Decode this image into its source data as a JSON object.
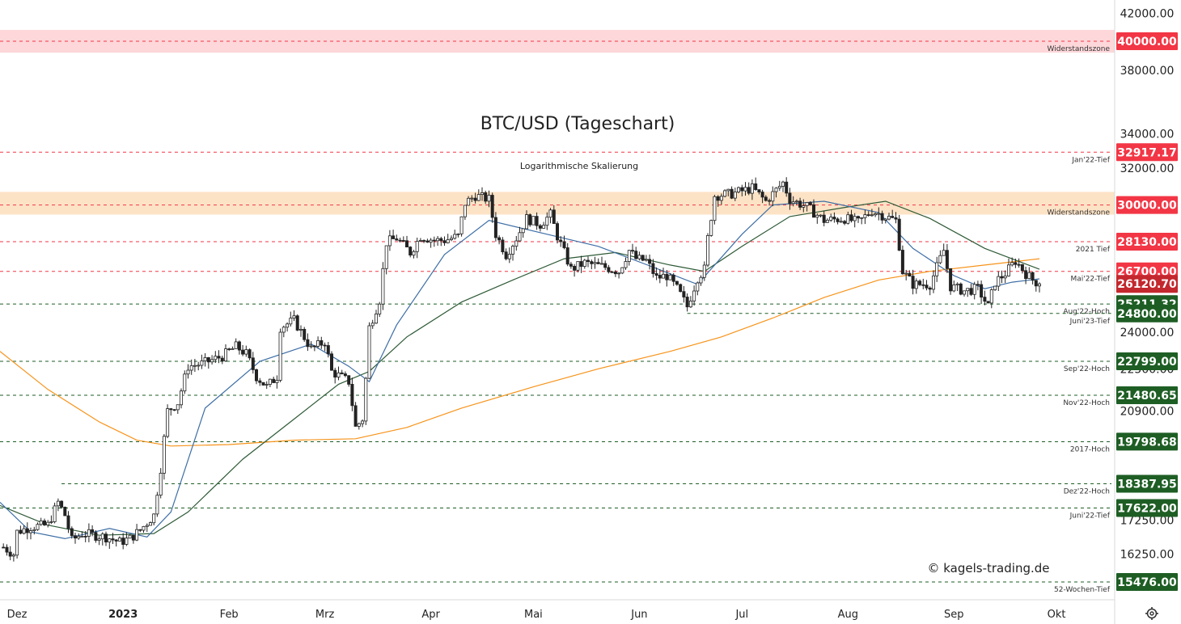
{
  "chart_data": {
    "type": "candlestick",
    "title": "BTC/USD (Tageschart)",
    "subtitle": "Logarithmische Skalierung",
    "watermark": "© kagels-trading.de",
    "y_scale": "log",
    "ylim": [
      15000,
      43000
    ],
    "x_range": [
      "2022-11-26",
      "2023-10-18"
    ],
    "y_ticks": [
      "42000.00",
      "38000.00",
      "34000.00",
      "32000.00",
      "24000.00",
      "22500.00",
      "20900.00",
      "17250.00",
      "16250.00"
    ],
    "x_ticks": [
      {
        "date": "2022-12-01",
        "label": "Dez",
        "bold": false
      },
      {
        "date": "2023-01-01",
        "label": "2023",
        "bold": true
      },
      {
        "date": "2023-02-01",
        "label": "Feb",
        "bold": false
      },
      {
        "date": "2023-03-01",
        "label": "Mrz",
        "bold": false
      },
      {
        "date": "2023-04-01",
        "label": "Apr",
        "bold": false
      },
      {
        "date": "2023-05-01",
        "label": "Mai",
        "bold": false
      },
      {
        "date": "2023-06-01",
        "label": "Jun",
        "bold": false
      },
      {
        "date": "2023-07-01",
        "label": "Jul",
        "bold": false
      },
      {
        "date": "2023-08-01",
        "label": "Aug",
        "bold": false
      },
      {
        "date": "2023-09-01",
        "label": "Sep",
        "bold": false
      },
      {
        "date": "2023-10-01",
        "label": "Okt",
        "bold": false
      }
    ],
    "zones": [
      {
        "label": "Widerstandszone",
        "low": 39200,
        "high": 40800,
        "color": "#fdd7da"
      },
      {
        "label": "Widerstandszone",
        "low": 29500,
        "high": 30700,
        "color": "#fde3c6"
      }
    ],
    "levels": [
      {
        "label": "Widerstandszone",
        "value": 40000.0,
        "text": "40000.00",
        "color": "#f23645",
        "start": "2022-11-26"
      },
      {
        "label": "Jan'22-Tief",
        "value": 32917.17,
        "text": "32917.17",
        "color": "#f23645",
        "start": "2022-11-26"
      },
      {
        "label": "Widerstandszone",
        "value": 30000.0,
        "text": "30000.00",
        "color": "#f23645",
        "start": "2022-11-26"
      },
      {
        "label": "2021 Tief",
        "value": 28130.0,
        "text": "28130.00",
        "color": "#f23645",
        "start": "2022-11-26"
      },
      {
        "label": "Mai'22-Tief",
        "value": 26700.0,
        "text": "26700.00",
        "color": "#f23645",
        "start": "2022-11-26"
      },
      {
        "label": "Aug'22-Hoch",
        "value": 25211.32,
        "text": "25211.32",
        "color": "#1e5e24",
        "start": "2022-11-26"
      },
      {
        "label": "Juni'23-Tief",
        "value": 24800.0,
        "text": "24800.00",
        "color": "#1e5e24",
        "start": "2023-06-15"
      },
      {
        "label": "Sep'22-Hoch",
        "value": 22799.0,
        "text": "22799.00",
        "color": "#1e5e24",
        "start": "2022-11-26"
      },
      {
        "label": "Nov'22-Hoch",
        "value": 21480.65,
        "text": "21480.65",
        "color": "#1e5e24",
        "start": "2022-11-26"
      },
      {
        "label": "2017-Hoch",
        "value": 19798.68,
        "text": "19798.68",
        "color": "#1e5e24",
        "start": "2022-11-26"
      },
      {
        "label": "Dez'22-Hoch",
        "value": 18387.95,
        "text": "18387.95",
        "color": "#1e5e24",
        "start": "2022-12-14"
      },
      {
        "label": "Juni'22-Tief",
        "value": 17622.0,
        "text": "17622.00",
        "color": "#1e5e24",
        "start": "2022-11-26"
      },
      {
        "label": "52-Wochen-Tief",
        "value": 15476.0,
        "text": "15476.00",
        "color": "#1e5e24",
        "start": "2022-11-26"
      }
    ],
    "current_price": {
      "value": 26120.7,
      "text": "26120.70",
      "color": "#c3282e"
    },
    "price_path": [
      [
        "2022-11-27",
        16450
      ],
      [
        "2022-11-30",
        16250
      ],
      [
        "2022-12-01",
        16900
      ],
      [
        "2022-12-05",
        17050
      ],
      [
        "2022-12-10",
        17100
      ],
      [
        "2022-12-13",
        17800
      ],
      [
        "2022-12-15",
        17400
      ],
      [
        "2022-12-17",
        16650
      ],
      [
        "2022-12-20",
        16850
      ],
      [
        "2022-12-27",
        16750
      ],
      [
        "2022-12-31",
        16600
      ],
      [
        "2023-01-03",
        16700
      ],
      [
        "2023-01-06",
        16950
      ],
      [
        "2023-01-10",
        17400
      ],
      [
        "2023-01-12",
        18900
      ],
      [
        "2023-01-14",
        20900
      ],
      [
        "2023-01-17",
        21200
      ],
      [
        "2023-01-20",
        22600
      ],
      [
        "2023-01-24",
        22700
      ],
      [
        "2023-01-30",
        23000
      ],
      [
        "2023-02-03",
        23400
      ],
      [
        "2023-02-06",
        23100
      ],
      [
        "2023-02-09",
        22200
      ],
      [
        "2023-02-12",
        21800
      ],
      [
        "2023-02-15",
        22200
      ],
      [
        "2023-02-16",
        24200
      ],
      [
        "2023-02-20",
        24500
      ],
      [
        "2023-02-25",
        23300
      ],
      [
        "2023-03-01",
        23600
      ],
      [
        "2023-03-03",
        22400
      ],
      [
        "2023-03-08",
        22000
      ],
      [
        "2023-03-10",
        20300
      ],
      [
        "2023-03-12",
        20600
      ],
      [
        "2023-03-13",
        22100
      ],
      [
        "2023-03-14",
        24200
      ],
      [
        "2023-03-17",
        25400
      ],
      [
        "2023-03-19",
        28100
      ],
      [
        "2023-03-22",
        28300
      ],
      [
        "2023-03-26",
        27600
      ],
      [
        "2023-03-29",
        28400
      ],
      [
        "2023-04-02",
        28200
      ],
      [
        "2023-04-05",
        28200
      ],
      [
        "2023-04-09",
        28400
      ],
      [
        "2023-04-11",
        30100
      ],
      [
        "2023-04-14",
        30500
      ],
      [
        "2023-04-18",
        30300
      ],
      [
        "2023-04-20",
        28500
      ],
      [
        "2023-04-23",
        27500
      ],
      [
        "2023-04-26",
        28300
      ],
      [
        "2023-04-29",
        29300
      ],
      [
        "2023-05-03",
        29000
      ],
      [
        "2023-05-06",
        29500
      ],
      [
        "2023-05-08",
        28400
      ],
      [
        "2023-05-10",
        27600
      ],
      [
        "2023-05-12",
        26800
      ],
      [
        "2023-05-16",
        27100
      ],
      [
        "2023-05-22",
        26900
      ],
      [
        "2023-05-26",
        26700
      ],
      [
        "2023-05-29",
        27700
      ],
      [
        "2023-05-31",
        27300
      ],
      [
        "2023-06-03",
        27200
      ],
      [
        "2023-06-06",
        26400
      ],
      [
        "2023-06-09",
        26500
      ],
      [
        "2023-06-12",
        25900
      ],
      [
        "2023-06-15",
        25100
      ],
      [
        "2023-06-18",
        26400
      ],
      [
        "2023-06-20",
        26800
      ],
      [
        "2023-06-21",
        28300
      ],
      [
        "2023-06-23",
        30500
      ],
      [
        "2023-06-28",
        30600
      ],
      [
        "2023-07-04",
        30900
      ],
      [
        "2023-07-08",
        30200
      ],
      [
        "2023-07-13",
        31200
      ],
      [
        "2023-07-15",
        30300
      ],
      [
        "2023-07-20",
        29900
      ],
      [
        "2023-07-25",
        29200
      ],
      [
        "2023-07-31",
        29300
      ],
      [
        "2023-08-04",
        29100
      ],
      [
        "2023-08-08",
        29700
      ],
      [
        "2023-08-12",
        29400
      ],
      [
        "2023-08-15",
        29200
      ],
      [
        "2023-08-17",
        26700
      ],
      [
        "2023-08-20",
        26100
      ],
      [
        "2023-08-25",
        26100
      ],
      [
        "2023-08-29",
        27700
      ],
      [
        "2023-08-31",
        26000
      ],
      [
        "2023-09-04",
        25800
      ],
      [
        "2023-09-08",
        25900
      ],
      [
        "2023-09-11",
        25100
      ],
      [
        "2023-09-13",
        26200
      ],
      [
        "2023-09-16",
        26600
      ],
      [
        "2023-09-19",
        27200
      ],
      [
        "2023-09-22",
        26600
      ],
      [
        "2023-09-24",
        26300
      ],
      [
        "2023-09-26",
        26120
      ]
    ],
    "series": [
      {
        "name": "",
        "color": "#f7931a",
        "points": [
          [
            "2022-11-26",
            23200
          ],
          [
            "2022-12-10",
            21700
          ],
          [
            "2022-12-25",
            20500
          ],
          [
            "2023-01-05",
            19850
          ],
          [
            "2023-01-15",
            19650
          ],
          [
            "2023-02-01",
            19700
          ],
          [
            "2023-02-20",
            19850
          ],
          [
            "2023-03-10",
            19900
          ],
          [
            "2023-03-25",
            20300
          ],
          [
            "2023-04-10",
            21000
          ],
          [
            "2023-05-01",
            21800
          ],
          [
            "2023-05-20",
            22500
          ],
          [
            "2023-06-10",
            23200
          ],
          [
            "2023-06-25",
            23800
          ],
          [
            "2023-07-10",
            24600
          ],
          [
            "2023-07-25",
            25500
          ],
          [
            "2023-08-10",
            26300
          ],
          [
            "2023-08-25",
            26700
          ],
          [
            "2023-09-10",
            27000
          ],
          [
            "2023-09-26",
            27300
          ]
        ]
      },
      {
        "name": "",
        "color": "#2e5a36",
        "points": [
          [
            "2022-11-26",
            17700
          ],
          [
            "2022-12-10",
            17100
          ],
          [
            "2022-12-25",
            16800
          ],
          [
            "2023-01-10",
            16850
          ],
          [
            "2023-01-20",
            17500
          ],
          [
            "2023-02-05",
            19200
          ],
          [
            "2023-02-20",
            20600
          ],
          [
            "2023-03-05",
            21900
          ],
          [
            "2023-03-14",
            22400
          ],
          [
            "2023-03-25",
            23800
          ],
          [
            "2023-04-10",
            25300
          ],
          [
            "2023-04-25",
            26300
          ],
          [
            "2023-05-10",
            27300
          ],
          [
            "2023-05-25",
            27600
          ],
          [
            "2023-06-10",
            27000
          ],
          [
            "2023-06-20",
            26700
          ],
          [
            "2023-07-01",
            27900
          ],
          [
            "2023-07-15",
            29400
          ],
          [
            "2023-08-01",
            29900
          ],
          [
            "2023-08-12",
            30200
          ],
          [
            "2023-08-25",
            29300
          ],
          [
            "2023-09-10",
            27800
          ],
          [
            "2023-09-26",
            26800
          ]
        ]
      },
      {
        "name": "",
        "color": "#3d6ea5",
        "points": [
          [
            "2022-11-26",
            17800
          ],
          [
            "2022-12-05",
            16900
          ],
          [
            "2022-12-15",
            16700
          ],
          [
            "2022-12-28",
            17000
          ],
          [
            "2023-01-08",
            16750
          ],
          [
            "2023-01-15",
            17500
          ],
          [
            "2023-01-25",
            21000
          ],
          [
            "2023-02-10",
            22800
          ],
          [
            "2023-02-25",
            23500
          ],
          [
            "2023-03-08",
            22600
          ],
          [
            "2023-03-14",
            22000
          ],
          [
            "2023-03-22",
            24300
          ],
          [
            "2023-04-05",
            27500
          ],
          [
            "2023-04-18",
            29200
          ],
          [
            "2023-05-05",
            28500
          ],
          [
            "2023-05-20",
            27900
          ],
          [
            "2023-06-05",
            26900
          ],
          [
            "2023-06-18",
            26100
          ],
          [
            "2023-07-01",
            28500
          ],
          [
            "2023-07-10",
            30000
          ],
          [
            "2023-07-25",
            30200
          ],
          [
            "2023-08-10",
            29600
          ],
          [
            "2023-08-20",
            27800
          ],
          [
            "2023-09-01",
            26500
          ],
          [
            "2023-09-10",
            25900
          ],
          [
            "2023-09-18",
            26200
          ],
          [
            "2023-09-26",
            26350
          ]
        ]
      }
    ],
    "up_color": "#089981",
    "down_color": "#f23645",
    "candle_color": "#222222",
    "grid": false
  }
}
